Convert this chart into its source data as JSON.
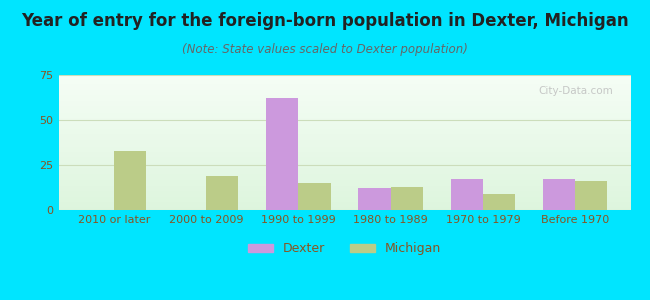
{
  "title": "Year of entry for the foreign-born population in Dexter, Michigan",
  "subtitle": "(Note: State values scaled to Dexter population)",
  "categories": [
    "2010 or later",
    "2000 to 2009",
    "1990 to 1999",
    "1980 to 1989",
    "1970 to 1979",
    "Before 1970"
  ],
  "dexter_values": [
    0,
    0,
    62,
    12,
    17,
    17
  ],
  "michigan_values": [
    33,
    19,
    15,
    13,
    9,
    16
  ],
  "dexter_color": "#cc99dd",
  "michigan_color": "#bbcc88",
  "background_outer": "#00e5ff",
  "background_inner_top": "#f5fdf5",
  "background_inner_bottom": "#ddf5dd",
  "bar_width": 0.35,
  "ylim": [
    0,
    75
  ],
  "yticks": [
    0,
    25,
    50,
    75
  ],
  "title_fontsize": 12,
  "subtitle_fontsize": 8.5,
  "tick_fontsize": 8,
  "legend_fontsize": 9,
  "axis_color": "#885522",
  "grid_color": "#ccddbb",
  "watermark_text": "City-Data.com"
}
